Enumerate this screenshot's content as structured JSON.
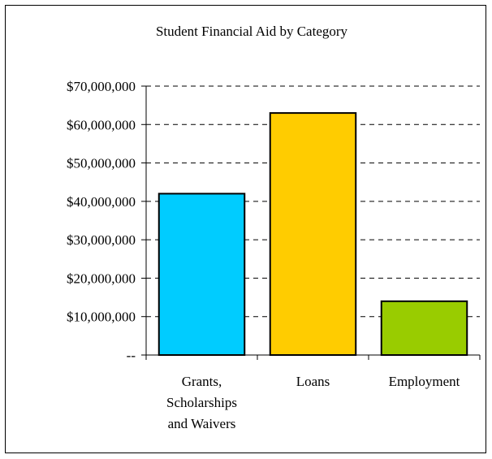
{
  "chart_data": {
    "type": "bar",
    "title": "Student Financial Aid by Category",
    "xlabel": "",
    "ylabel": "",
    "categories": [
      [
        "Grants,",
        "Scholarships",
        "and Waivers"
      ],
      [
        "Loans"
      ],
      [
        "Employment"
      ]
    ],
    "values": [
      42000000,
      63000000,
      14000000
    ],
    "colors": [
      "#00ccff",
      "#ffcc00",
      "#99cc00"
    ],
    "ylim": [
      0,
      70000000
    ],
    "yticks": [
      0,
      10000000,
      20000000,
      30000000,
      40000000,
      50000000,
      60000000,
      70000000
    ],
    "ytick_labels": [
      "--",
      "$10,000,000",
      "$20,000,000",
      "$30,000,000",
      "$40,000,000",
      "$50,000,000",
      "$60,000,000",
      "$70,000,000"
    ],
    "grid": "horizontal-dashed",
    "legend": "none"
  }
}
